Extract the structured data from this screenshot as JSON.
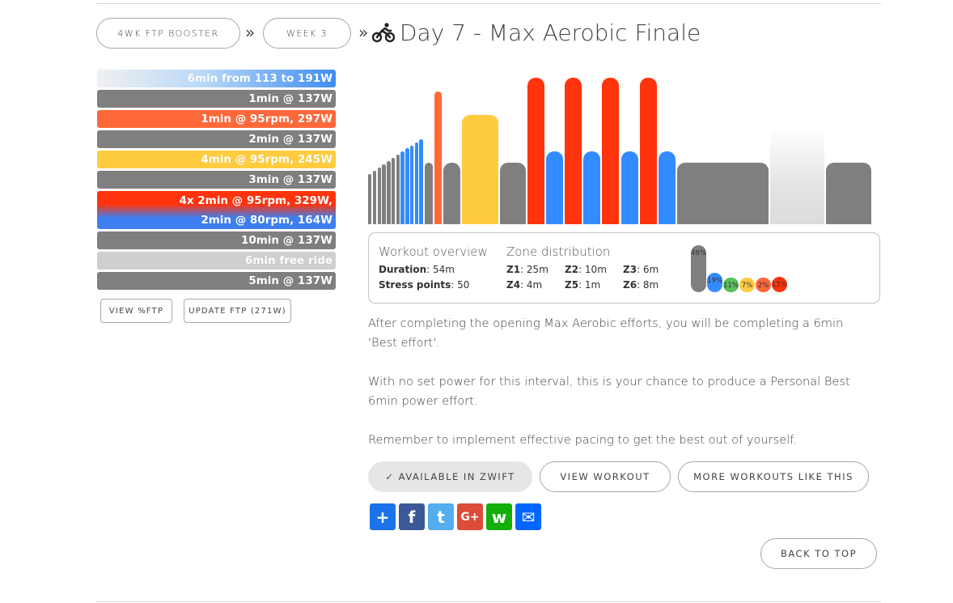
{
  "breadcrumb": {
    "plan": "4WK FTP BOOSTER",
    "week": "WEEK 3",
    "separator": "»"
  },
  "workout": {
    "title": "Day 7 - Max Aerobic Finale",
    "sport_icon": "cyclist-icon"
  },
  "intervals": [
    {
      "label": "6min from 113 to 191W",
      "style": "ramp-blue"
    },
    {
      "label": "1min @ 137W",
      "color": "#7f7f7f"
    },
    {
      "label": "1min @ 95rpm, 297W",
      "color": "#ff6838"
    },
    {
      "label": "2min @ 137W",
      "color": "#7f7f7f"
    },
    {
      "label": "4min @ 95rpm, 245W",
      "color": "#ffcc3f"
    },
    {
      "label": "3min @ 137W",
      "color": "#7f7f7f"
    },
    {
      "label": "4x 2min @ 95rpm, 329W,",
      "label2": "2min @ 80rpm, 164W",
      "style": "red-blue"
    },
    {
      "label": "10min @ 137W",
      "color": "#7f7f7f"
    },
    {
      "label": "6min free ride",
      "color": "#cfcfcf"
    },
    {
      "label": "5min @ 137W",
      "color": "#7f7f7f"
    }
  ],
  "side_buttons": {
    "view_ftp": "VIEW %FTP",
    "update_ftp": "UPDATE FTP (271W)"
  },
  "chart_data": {
    "type": "bar",
    "description_note": "",
    "segments": [
      {
        "minutes": 6,
        "watts_start": 113,
        "watts_end": 191,
        "zone": "ramp"
      },
      {
        "minutes": 1,
        "watts": 137,
        "zone": "Z1"
      },
      {
        "minutes": 1,
        "watts": 297,
        "zone": "Z5"
      },
      {
        "minutes": 2,
        "watts": 137,
        "zone": "Z1"
      },
      {
        "minutes": 4,
        "watts": 245,
        "zone": "Z4"
      },
      {
        "minutes": 3,
        "watts": 137,
        "zone": "Z1"
      },
      {
        "minutes": 2,
        "watts": 329,
        "zone": "Z6"
      },
      {
        "minutes": 2,
        "watts": 164,
        "zone": "Z2"
      },
      {
        "minutes": 2,
        "watts": 329,
        "zone": "Z6"
      },
      {
        "minutes": 2,
        "watts": 164,
        "zone": "Z2"
      },
      {
        "minutes": 2,
        "watts": 329,
        "zone": "Z6"
      },
      {
        "minutes": 2,
        "watts": 164,
        "zone": "Z2"
      },
      {
        "minutes": 2,
        "watts": 329,
        "zone": "Z6"
      },
      {
        "minutes": 2,
        "watts": 164,
        "zone": "Z2"
      },
      {
        "minutes": 10,
        "watts": 137,
        "zone": "Z1"
      },
      {
        "minutes": 6,
        "watts": 0,
        "zone": "free"
      },
      {
        "minutes": 5,
        "watts": 137,
        "zone": "Z1"
      }
    ]
  },
  "overview": {
    "heading": "Workout overview",
    "duration_label": "Duration",
    "duration_value": ": 54m",
    "stress_label": "Stress points",
    "stress_value": ": 50"
  },
  "zones": {
    "heading": "Zone distribution",
    "items": [
      {
        "label": "Z1",
        "value": ": 25m"
      },
      {
        "label": "Z2",
        "value": ": 10m"
      },
      {
        "label": "Z3",
        "value": ": 6m"
      },
      {
        "label": "Z4",
        "value": ": 4m"
      },
      {
        "label": "Z5",
        "value": ": 1m"
      },
      {
        "label": "Z6",
        "value": ": 8m"
      }
    ],
    "bars": [
      {
        "pct": "46%",
        "value": 46,
        "color": "#7f7f7f"
      },
      {
        "pct": "19%",
        "value": 19,
        "color": "#338cff"
      },
      {
        "pct": "11%",
        "value": 11,
        "color": "#59bf59"
      },
      {
        "pct": "7%",
        "value": 7,
        "color": "#ffcc3f"
      },
      {
        "pct": "2%",
        "value": 2,
        "color": "#ff6639"
      },
      {
        "pct": "15%",
        "value": 15,
        "color": "#ff330c"
      }
    ]
  },
  "description": [
    "After completing the opening Max Aerobic efforts, you will be completing a 6min 'Best effort'.",
    "With no set power for this interval, this is your chance to produce a Personal Best 6min power effort.",
    "Remember to implement effective pacing to get the best out of yourself."
  ],
  "actions": {
    "zwift": "✓ AVAILABLE IN ZWIFT",
    "view": "VIEW WORKOUT",
    "more": "MORE WORKOUTS LIKE THIS",
    "back_to_top": "BACK TO TOP"
  },
  "share": [
    {
      "icon": "share-plus-icon",
      "glyph": "+",
      "color": "#1a73e8"
    },
    {
      "icon": "facebook-icon",
      "glyph": "f",
      "color": "#3b5998"
    },
    {
      "icon": "twitter-icon",
      "glyph": "t",
      "color": "#55acee"
    },
    {
      "icon": "google-plus-icon",
      "glyph": "G+",
      "color": "#dd4b39"
    },
    {
      "icon": "whatsapp-icon",
      "glyph": "w",
      "color": "#12af0a"
    },
    {
      "icon": "email-icon",
      "glyph": "✉",
      "color": "#0166ff"
    }
  ]
}
